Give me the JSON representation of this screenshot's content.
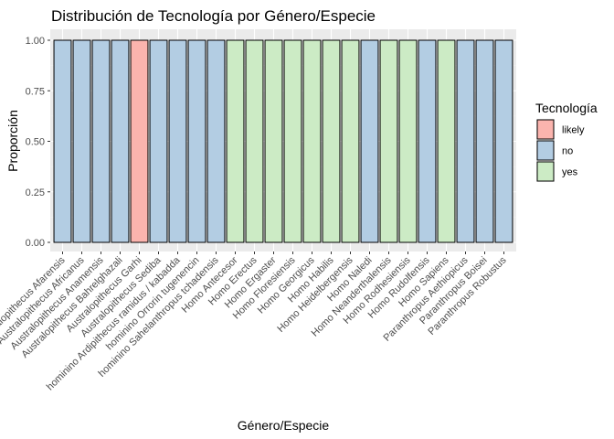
{
  "chart_data": {
    "type": "bar",
    "title": "Distribución de Tecnología por Género/Especie",
    "xlabel": "Género/Especie",
    "ylabel": "Proporción",
    "ylim": [
      0,
      1
    ],
    "yticks": [
      "0.00",
      "0.25",
      "0.50",
      "0.75",
      "1.00"
    ],
    "grid": true,
    "legend_position": "right",
    "legend": {
      "title": "Tecnología",
      "entries": [
        {
          "key": "likely",
          "label": "likely",
          "color": "#fbb4ae"
        },
        {
          "key": "no",
          "label": "no",
          "color": "#b3cde3"
        },
        {
          "key": "yes",
          "label": "yes",
          "color": "#ccebc5"
        }
      ]
    },
    "categories": [
      "Australopithecus Afarensis",
      "Australopithecus Africanus",
      "Australopithecus Anamensis",
      "Australopithecus Bahrelghazali",
      "Australopithecus Garhi",
      "Australopithecus Sediba",
      "hominino Ardipithecus ramidus / kabadda",
      "hominino Orrorin tugenencin",
      "hominino Sahelanthropus tchadensis",
      "Homo Antecesor",
      "Homo Erectus",
      "Homo Ergaster",
      "Homo Floresiensis",
      "Homo Georgicus",
      "Homo Habilis",
      "Homo Heidelbergensis",
      "Homo Naledi",
      "Homo Neanderthalensis",
      "Homo Rodhesiensis",
      "Homo Rudolfensis",
      "Homo Sapiens",
      "Paranthropus Aethiopicus",
      "Paranthropus Boisei",
      "Paranthropus Robustus"
    ],
    "technology": [
      "no",
      "no",
      "no",
      "no",
      "likely",
      "no",
      "no",
      "no",
      "no",
      "yes",
      "yes",
      "yes",
      "yes",
      "yes",
      "yes",
      "yes",
      "no",
      "yes",
      "yes",
      "no",
      "yes",
      "no",
      "no",
      "no"
    ],
    "values": [
      1,
      1,
      1,
      1,
      1,
      1,
      1,
      1,
      1,
      1,
      1,
      1,
      1,
      1,
      1,
      1,
      1,
      1,
      1,
      1,
      1,
      1,
      1,
      1
    ]
  }
}
